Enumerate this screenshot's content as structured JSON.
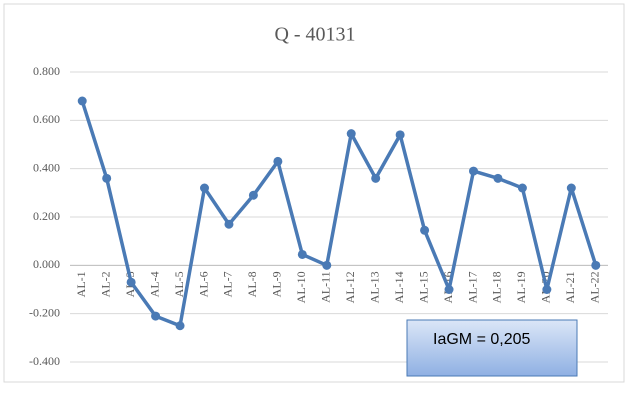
{
  "chart_data": {
    "type": "line",
    "title": "Q - 40131",
    "categories": [
      "AL-1",
      "AL-2",
      "AL-3",
      "AL-4",
      "AL-5",
      "AL-6",
      "AL-7",
      "AL-8",
      "AL-9",
      "AL-10",
      "AL-11",
      "AL-12",
      "AL-13",
      "AL-14",
      "AL-15",
      "AL-16",
      "AL-17",
      "AL-18",
      "AL-19",
      "AL-20",
      "AL-21",
      "AL-22"
    ],
    "values": [
      0.68,
      0.36,
      -0.07,
      -0.21,
      -0.25,
      0.32,
      0.17,
      0.29,
      0.43,
      0.045,
      0,
      0.545,
      0.36,
      0.54,
      0.145,
      -0.1,
      0.39,
      0.36,
      0.32,
      -0.1,
      0.32,
      0
    ],
    "color": "#4a7ab5",
    "ylim": [
      -0.4,
      0.8
    ],
    "yticks": [
      {
        "value": -0.4,
        "label": "-0.400"
      },
      {
        "value": -0.2,
        "label": "-0.200"
      },
      {
        "value": 0,
        "label": "0.000"
      },
      {
        "value": 0.2,
        "label": "0.200"
      },
      {
        "value": 0.4,
        "label": "0.400"
      },
      {
        "value": 0.6,
        "label": "0.600"
      },
      {
        "value": 0.8,
        "label": "0.800"
      }
    ],
    "grid": true,
    "annotation": "IaGM = 0,205"
  }
}
